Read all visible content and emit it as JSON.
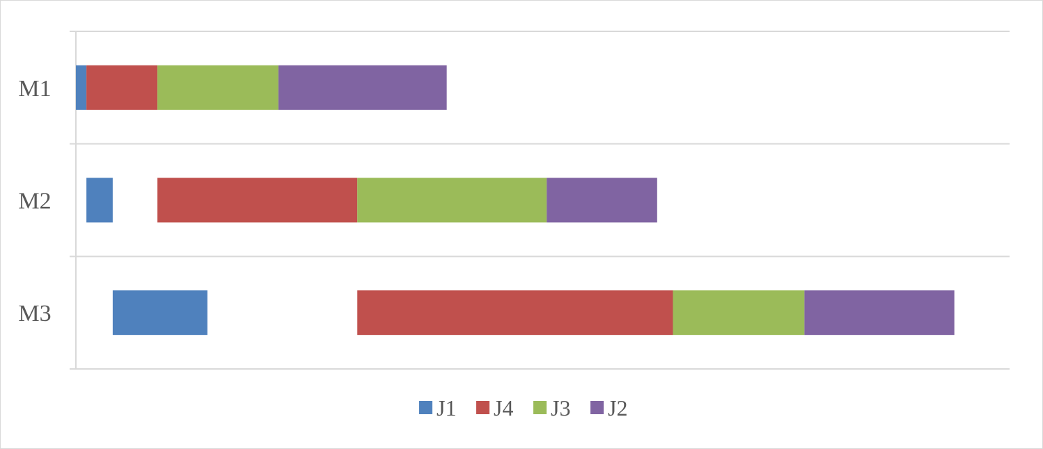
{
  "chart_data": {
    "type": "bar",
    "orientation": "horizontal",
    "stacked": true,
    "title": "",
    "xlabel": "",
    "ylabel": "",
    "categories": [
      "M1",
      "M2",
      "M3"
    ],
    "category_order": "top-to-bottom",
    "xlim": [
      0,
      35.5
    ],
    "x_axis_visible": false,
    "grid": "horizontal separators between categories",
    "legend_position": "bottom",
    "series": [
      {
        "name": "J1",
        "color": "#4f81bd",
        "segments": [
          {
            "start": 0,
            "end": 0.4
          },
          {
            "start": 0.4,
            "end": 1.4
          },
          {
            "start": 1.4,
            "end": 5
          }
        ]
      },
      {
        "name": "J4",
        "color": "#c0504d",
        "segments": [
          {
            "start": 0.4,
            "end": 3.1
          },
          {
            "start": 3.1,
            "end": 10.7
          },
          {
            "start": 10.7,
            "end": 22.7
          }
        ]
      },
      {
        "name": "J3",
        "color": "#9bbb59",
        "segments": [
          {
            "start": 3.1,
            "end": 7.7
          },
          {
            "start": 10.7,
            "end": 17.9
          },
          {
            "start": 22.7,
            "end": 27.7
          }
        ]
      },
      {
        "name": "J2",
        "color": "#8064a2",
        "segments": [
          {
            "start": 7.7,
            "end": 14.1
          },
          {
            "start": 17.9,
            "end": 22.1
          },
          {
            "start": 27.7,
            "end": 33.4
          }
        ]
      }
    ]
  }
}
